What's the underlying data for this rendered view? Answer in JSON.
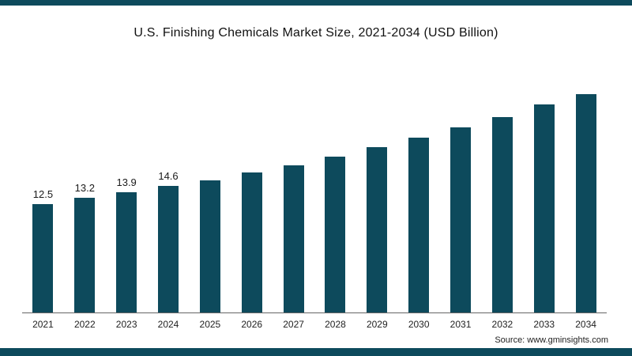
{
  "page": {
    "title": "U.S. Finishing Chemicals Market Size, 2021-2034 (USD Billion)",
    "source": "Source: www.gminsights.com"
  },
  "colors": {
    "bar": "#0d4a5c",
    "band": "#0d4a5c",
    "axis": "#666666"
  },
  "chart_data": {
    "type": "bar",
    "title": "U.S. Finishing Chemicals Market Size, 2021-2034 (USD Billion)",
    "xlabel": "",
    "ylabel": "",
    "categories": [
      "2021",
      "2022",
      "2023",
      "2024",
      "2025",
      "2026",
      "2027",
      "2028",
      "2029",
      "2030",
      "2031",
      "2032",
      "2033",
      "2034"
    ],
    "values": [
      12.5,
      13.2,
      13.9,
      14.6,
      15.2,
      16.1,
      17.0,
      18.0,
      19.1,
      20.2,
      21.3,
      22.5,
      24.0,
      25.4
    ],
    "visible_value_labels": [
      "12.5",
      "13.2",
      "13.9",
      "14.6"
    ],
    "value_labels_shown_count": 4,
    "ylim": [
      0,
      27
    ],
    "grid": false,
    "legend": false,
    "y_axis_shown": false,
    "bar_color": "#0d4a5c"
  }
}
